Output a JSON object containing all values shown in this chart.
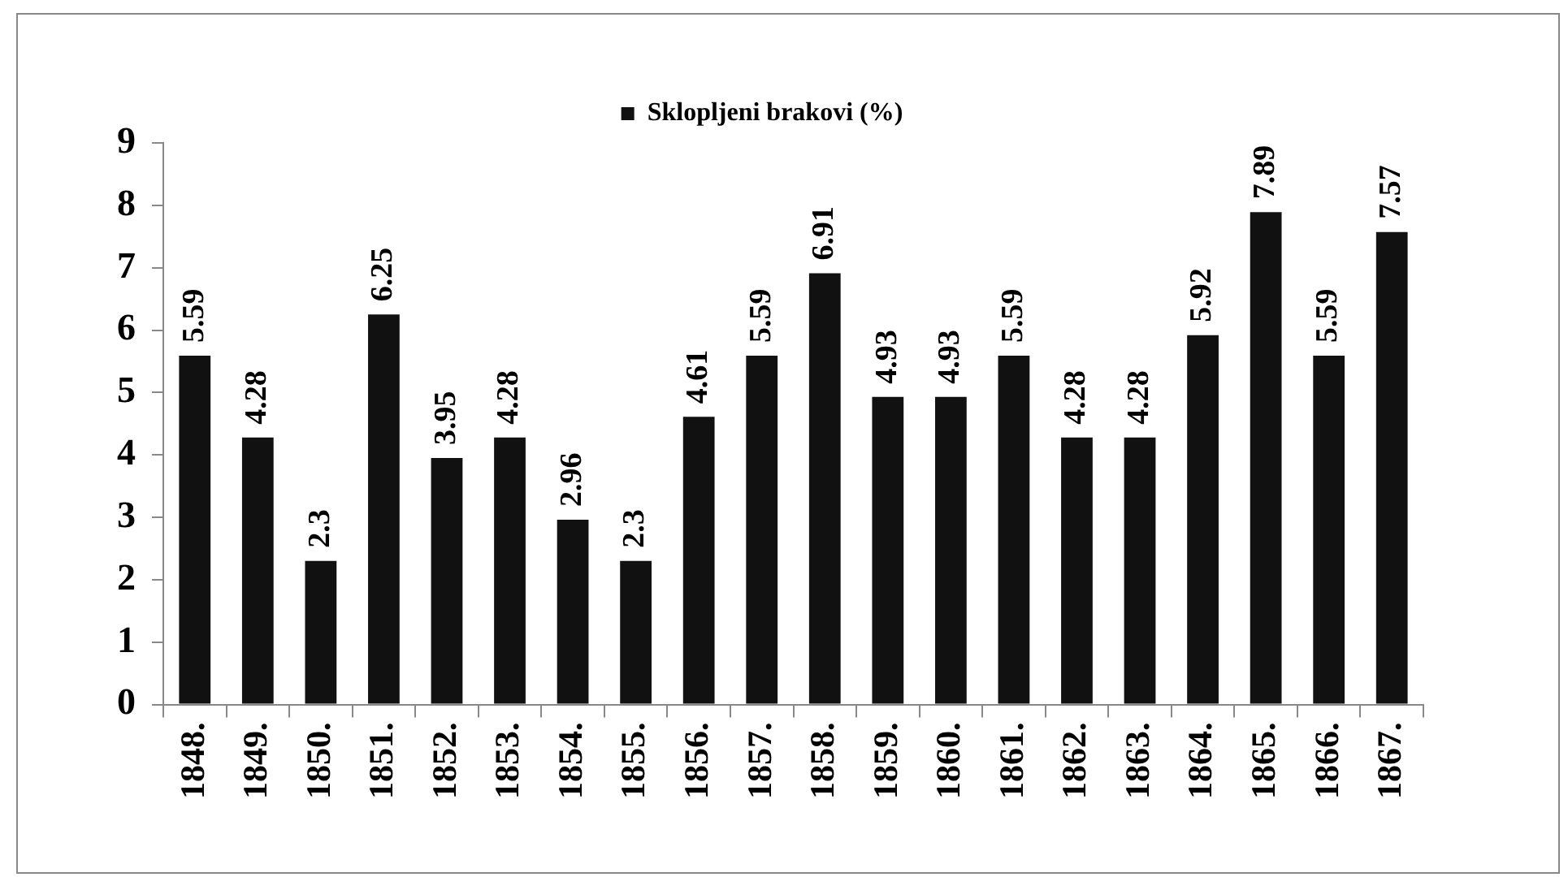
{
  "chart_data": {
    "type": "bar",
    "categories": [
      "1848.",
      "1849.",
      "1850.",
      "1851.",
      "1852.",
      "1853.",
      "1854.",
      "1855.",
      "1856.",
      "1857.",
      "1858.",
      "1859.",
      "1860.",
      "1861.",
      "1862.",
      "1863.",
      "1864.",
      "1865.",
      "1866.",
      "1867."
    ],
    "series": [
      {
        "name": "Sklopljeni brakovi (%)",
        "color": "#111111",
        "values": [
          5.59,
          4.28,
          2.3,
          6.25,
          3.95,
          4.28,
          2.96,
          2.3,
          4.61,
          5.59,
          6.91,
          4.93,
          4.93,
          5.59,
          4.28,
          4.28,
          5.92,
          7.89,
          5.59,
          7.57
        ]
      }
    ],
    "ylim": [
      0,
      9
    ],
    "yticks": [
      0,
      1,
      2,
      3,
      4,
      5,
      6,
      7,
      8,
      9
    ],
    "data_labels": true,
    "legend": "top",
    "grid": false
  }
}
